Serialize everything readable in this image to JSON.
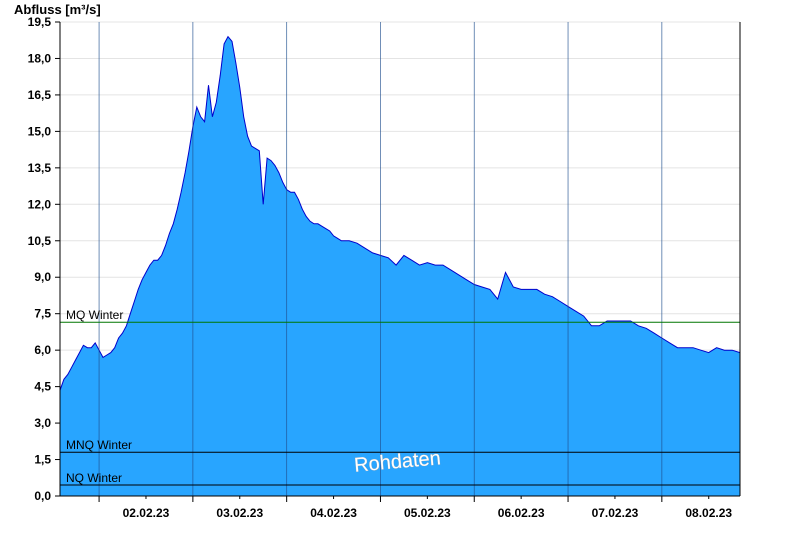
{
  "chart_data": {
    "type": "area",
    "ylabel": "Abfluss [m³/s]",
    "watermark": "Rohdaten",
    "ylim": [
      0,
      19.5
    ],
    "yticks": [
      "0,0",
      "1,5",
      "3,0",
      "4,5",
      "6,0",
      "7,5",
      "9,0",
      "10,5",
      "12,0",
      "13,5",
      "15,0",
      "16,5",
      "18,0",
      "19,5"
    ],
    "xlim": [
      "2023-02-01T14:00",
      "2023-02-08T20:00"
    ],
    "day_labels": [
      {
        "date": "2023-02-02T12:00",
        "label": "02.02.23"
      },
      {
        "date": "2023-02-03T12:00",
        "label": "03.02.23"
      },
      {
        "date": "2023-02-04T12:00",
        "label": "04.02.23"
      },
      {
        "date": "2023-02-05T12:00",
        "label": "05.02.23"
      },
      {
        "date": "2023-02-06T12:00",
        "label": "06.02.23"
      },
      {
        "date": "2023-02-07T12:00",
        "label": "07.02.23"
      },
      {
        "date": "2023-02-08T12:00",
        "label": "08.02.23"
      }
    ],
    "day_boundaries": [
      "2023-02-02T00:00",
      "2023-02-03T00:00",
      "2023-02-04T00:00",
      "2023-02-05T00:00",
      "2023-02-06T00:00",
      "2023-02-07T00:00",
      "2023-02-08T00:00"
    ],
    "grid": "horizontal",
    "fill_color": "#28a5ff",
    "line_color": "#0000cc",
    "reference_lines": [
      {
        "name": "MQ Winter",
        "value": 7.15,
        "color": "#007700"
      },
      {
        "name": "MNQ Winter",
        "value": 1.8,
        "color": "#000000"
      },
      {
        "name": "NQ Winter",
        "value": 0.45,
        "color": "#000000"
      }
    ],
    "series": [
      {
        "x": [
          "2023-02-01T14:00",
          "2023-02-01T15:00",
          "2023-02-01T16:00",
          "2023-02-01T17:00",
          "2023-02-01T18:00",
          "2023-02-01T19:00",
          "2023-02-01T20:00",
          "2023-02-01T21:00",
          "2023-02-01T22:00",
          "2023-02-01T23:00",
          "2023-02-02T00:00",
          "2023-02-02T01:00",
          "2023-02-02T02:00",
          "2023-02-02T03:00",
          "2023-02-02T04:00",
          "2023-02-02T05:00",
          "2023-02-02T06:00",
          "2023-02-02T07:00",
          "2023-02-02T08:00",
          "2023-02-02T09:00",
          "2023-02-02T10:00",
          "2023-02-02T11:00",
          "2023-02-02T12:00",
          "2023-02-02T13:00",
          "2023-02-02T14:00",
          "2023-02-02T15:00",
          "2023-02-02T16:00",
          "2023-02-02T17:00",
          "2023-02-02T18:00",
          "2023-02-02T19:00",
          "2023-02-02T20:00",
          "2023-02-02T21:00",
          "2023-02-02T22:00",
          "2023-02-02T23:00",
          "2023-02-03T00:00",
          "2023-02-03T01:00",
          "2023-02-03T02:00",
          "2023-02-03T03:00",
          "2023-02-03T04:00",
          "2023-02-03T05:00",
          "2023-02-03T06:00",
          "2023-02-03T07:00",
          "2023-02-03T08:00",
          "2023-02-03T09:00",
          "2023-02-03T10:00",
          "2023-02-03T11:00",
          "2023-02-03T12:00",
          "2023-02-03T13:00",
          "2023-02-03T14:00",
          "2023-02-03T15:00",
          "2023-02-03T16:00",
          "2023-02-03T17:00",
          "2023-02-03T18:00",
          "2023-02-03T19:00",
          "2023-02-03T20:00",
          "2023-02-03T21:00",
          "2023-02-03T22:00",
          "2023-02-03T23:00",
          "2023-02-04T00:00",
          "2023-02-04T01:00",
          "2023-02-04T02:00",
          "2023-02-04T03:00",
          "2023-02-04T04:00",
          "2023-02-04T05:00",
          "2023-02-04T06:00",
          "2023-02-04T07:00",
          "2023-02-04T08:00",
          "2023-02-04T09:00",
          "2023-02-04T10:00",
          "2023-02-04T11:00",
          "2023-02-04T12:00",
          "2023-02-04T13:00",
          "2023-02-04T14:00",
          "2023-02-04T16:00",
          "2023-02-04T18:00",
          "2023-02-04T20:00",
          "2023-02-04T22:00",
          "2023-02-05T00:00",
          "2023-02-05T02:00",
          "2023-02-05T04:00",
          "2023-02-05T06:00",
          "2023-02-05T08:00",
          "2023-02-05T10:00",
          "2023-02-05T12:00",
          "2023-02-05T14:00",
          "2023-02-05T16:00",
          "2023-02-05T18:00",
          "2023-02-05T20:00",
          "2023-02-05T22:00",
          "2023-02-06T00:00",
          "2023-02-06T02:00",
          "2023-02-06T04:00",
          "2023-02-06T06:00",
          "2023-02-06T08:00",
          "2023-02-06T10:00",
          "2023-02-06T12:00",
          "2023-02-06T13:00",
          "2023-02-06T14:00",
          "2023-02-06T16:00",
          "2023-02-06T18:00",
          "2023-02-06T20:00",
          "2023-02-06T22:00",
          "2023-02-07T00:00",
          "2023-02-07T02:00",
          "2023-02-07T04:00",
          "2023-02-07T06:00",
          "2023-02-07T08:00",
          "2023-02-07T10:00",
          "2023-02-07T12:00",
          "2023-02-07T14:00",
          "2023-02-07T16:00",
          "2023-02-07T18:00",
          "2023-02-07T20:00",
          "2023-02-07T22:00",
          "2023-02-08T00:00",
          "2023-02-08T02:00",
          "2023-02-08T04:00",
          "2023-02-08T06:00",
          "2023-02-08T08:00",
          "2023-02-08T10:00",
          "2023-02-08T12:00",
          "2023-02-08T14:00",
          "2023-02-08T16:00",
          "2023-02-08T18:00",
          "2023-02-08T20:00"
        ],
        "values": [
          4.35,
          4.8,
          5.0,
          5.3,
          5.6,
          5.9,
          6.2,
          6.1,
          6.1,
          6.3,
          6.0,
          5.7,
          5.8,
          5.9,
          6.1,
          6.5,
          6.7,
          7.0,
          7.5,
          8.0,
          8.5,
          8.9,
          9.2,
          9.5,
          9.7,
          9.7,
          9.9,
          10.3,
          10.8,
          11.2,
          11.8,
          12.5,
          13.3,
          14.2,
          15.2,
          16.0,
          15.6,
          15.4,
          16.9,
          15.6,
          16.2,
          17.3,
          18.6,
          18.9,
          18.7,
          17.8,
          16.8,
          15.6,
          14.8,
          14.4,
          14.3,
          14.2,
          12.0,
          13.9,
          13.8,
          13.6,
          13.3,
          12.9,
          12.6,
          12.5,
          12.5,
          12.2,
          11.8,
          11.5,
          11.3,
          11.2,
          11.2,
          11.1,
          11.0,
          10.9,
          10.7,
          10.6,
          10.5,
          10.5,
          10.4,
          10.2,
          10.0,
          9.9,
          9.8,
          9.5,
          9.9,
          9.7,
          9.5,
          9.6,
          9.5,
          9.5,
          9.3,
          9.1,
          8.9,
          8.7,
          8.6,
          8.5,
          8.1,
          9.2,
          8.6,
          8.5,
          8.5,
          8.5,
          8.5,
          8.3,
          8.2,
          8.0,
          7.8,
          7.6,
          7.4,
          7.0,
          7.0,
          7.2,
          7.2,
          7.2,
          7.2,
          7.0,
          6.9,
          6.7,
          6.5,
          6.3,
          6.1,
          6.1,
          6.1,
          6.0,
          5.9,
          6.1,
          6.0,
          6.0,
          5.9
        ]
      }
    ]
  }
}
